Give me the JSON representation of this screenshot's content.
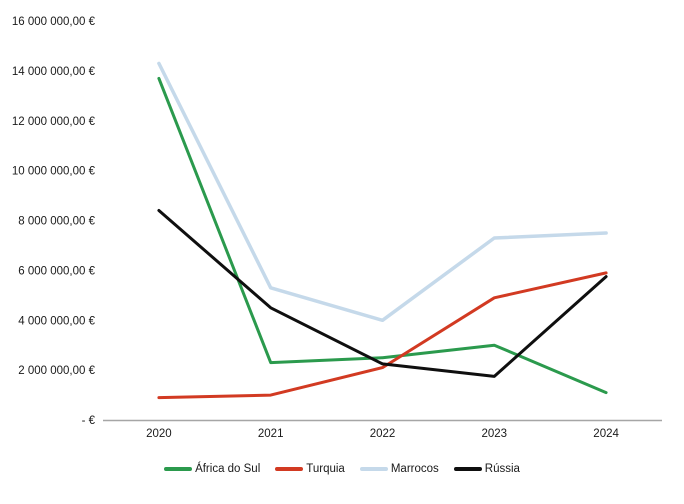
{
  "chart_data": {
    "type": "line",
    "title": "",
    "xlabel": "",
    "ylabel": "",
    "categories": [
      "2020",
      "2021",
      "2022",
      "2023",
      "2024"
    ],
    "series": [
      {
        "name": "África do Sul",
        "color": "#2b9a4d",
        "stroke_width": 3,
        "values": [
          13700000,
          2300000,
          2500000,
          3000000,
          1100000
        ]
      },
      {
        "name": "Turquia",
        "color": "#d23a22",
        "stroke_width": 3,
        "values": [
          900000,
          1000000,
          2100000,
          4900000,
          5900000
        ]
      },
      {
        "name": "Marrocos",
        "color": "#c5d9ea",
        "stroke_width": 3.5,
        "values": [
          14300000,
          5300000,
          4000000,
          7300000,
          7500000
        ]
      },
      {
        "name": "Rússia",
        "color": "#0f0f0f",
        "stroke_width": 3,
        "values": [
          8400000,
          4500000,
          2250000,
          1750000,
          5750000
        ]
      }
    ],
    "ylim": [
      0,
      16000000
    ],
    "y_tick_step": 2000000,
    "y_tick_labels": [
      "-   €",
      "2 000 000,00 €",
      "4 000 000,00 €",
      "6 000 000,00 €",
      "8 000 000,00 €",
      "10 000 000,00 €",
      "12 000 000,00 €",
      "14 000 000,00 €",
      "16 000 000,00 €"
    ],
    "grid": false,
    "legend_position": "bottom",
    "axis_color": "#a6a6a6",
    "text_color": "#1a1a1a",
    "background_color": "#ffffff"
  }
}
